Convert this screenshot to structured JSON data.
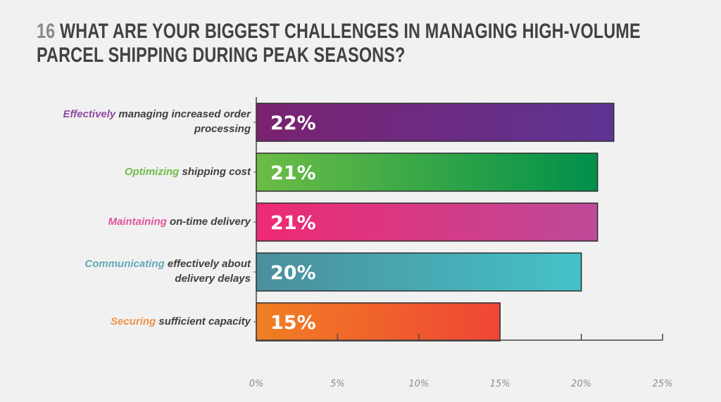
{
  "title": {
    "number": "16",
    "line1": "WHAT ARE YOUR BIGGEST CHALLENGES IN MANAGING HIGH-VOLUME",
    "line2": "PARCEL SHIPPING DURING PEAK SEASONS?"
  },
  "chart_data": {
    "type": "bar",
    "orientation": "horizontal",
    "title": "16 WHAT ARE YOUR BIGGEST CHALLENGES IN MANAGING HIGH-VOLUME PARCEL SHIPPING DURING PEAK SEASONS?",
    "xlabel": "",
    "ylabel": "",
    "xlim": [
      0,
      25
    ],
    "grid": false,
    "categories": [
      {
        "highlight": "Effectively",
        "rest": " managing increased order",
        "rest2": "processing",
        "full": "Effectively managing increased order processing"
      },
      {
        "highlight": "Optimizing",
        "rest": " shipping cost",
        "rest2": "",
        "full": "Optimizing shipping cost"
      },
      {
        "highlight": "Maintaining",
        "rest": " on-time delivery",
        "rest2": "",
        "full": "Maintaining on-time delivery"
      },
      {
        "highlight": "Communicating",
        "rest": " effectively about",
        "rest2": "delivery delays",
        "full": "Communicating effectively about delivery delays"
      },
      {
        "highlight": "Securing",
        "rest": " sufficient capacity",
        "rest2": "",
        "full": "Securing sufficient capacity"
      }
    ],
    "values": [
      22,
      21,
      21,
      20,
      15
    ],
    "data_labels": [
      "22%",
      "21%",
      "21%",
      "20%",
      "15%"
    ],
    "ticks": [
      0,
      5,
      10,
      15,
      20,
      25
    ],
    "tick_labels": [
      "0%",
      "5%",
      "10%",
      "15%",
      "20%",
      "25%"
    ],
    "colors": [
      {
        "start": "#7a2270",
        "end": "#5e3493",
        "label": "#8e4aa0"
      },
      {
        "start": "#6cbd45",
        "end": "#00904a",
        "label": "#6cbd45"
      },
      {
        "start": "#ee2a73",
        "end": "#bd4a98",
        "label": "#e2559b"
      },
      {
        "start": "#4a8f9c",
        "end": "#45c2c8",
        "label": "#62a9b6"
      },
      {
        "start": "#f07f22",
        "end": "#ef4536",
        "label": "#f0904a"
      }
    ]
  }
}
